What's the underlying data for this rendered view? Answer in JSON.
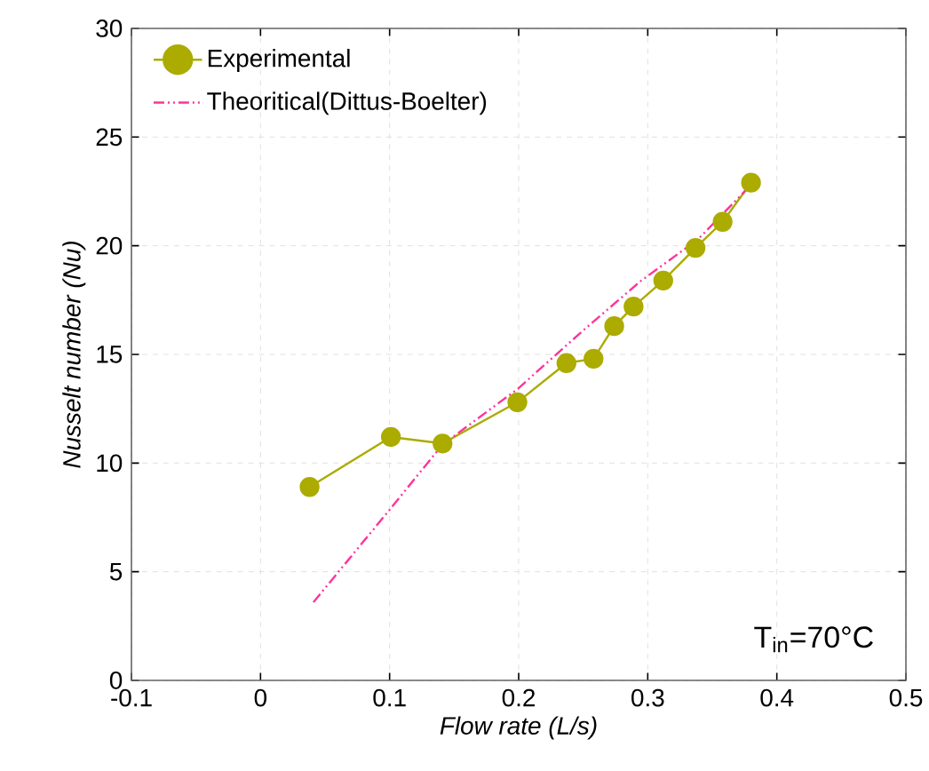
{
  "chart_data": {
    "type": "line",
    "xlabel": "Flow rate (L/s)",
    "ylabel": "Nusselt number (Nu)",
    "xlim": [
      -0.1,
      0.5
    ],
    "ylim": [
      0,
      30
    ],
    "xticks": [
      -0.1,
      0,
      0.1,
      0.2,
      0.3,
      0.4,
      0.5
    ],
    "yticks": [
      0,
      5,
      10,
      15,
      20,
      25,
      30
    ],
    "grid": true,
    "legend": "top left",
    "annotations": [
      "T$_{in}$=70°C"
    ],
    "series": [
      {
        "name": "Experimental",
        "color": "#abab00",
        "marker": "circle",
        "line_style": "solid",
        "x": [
          0.038,
          0.101,
          0.141,
          0.199,
          0.237,
          0.258,
          0.274,
          0.289,
          0.312,
          0.337,
          0.358,
          0.38
        ],
        "values": [
          8.9,
          11.2,
          10.9,
          12.8,
          14.6,
          14.8,
          16.3,
          17.2,
          18.4,
          19.9,
          21.1,
          22.9
        ]
      },
      {
        "name": "Theoritical(Dittus-Boelter)",
        "color": "#ff3399",
        "marker": "none",
        "line_style": "dashdotdotted",
        "x": [
          0.041,
          0.1,
          0.141,
          0.199,
          0.248,
          0.294,
          0.339,
          0.38
        ],
        "values": [
          3.6,
          7.85,
          10.85,
          13.4,
          16.0,
          18.35,
          20.3,
          22.8
        ]
      }
    ]
  }
}
